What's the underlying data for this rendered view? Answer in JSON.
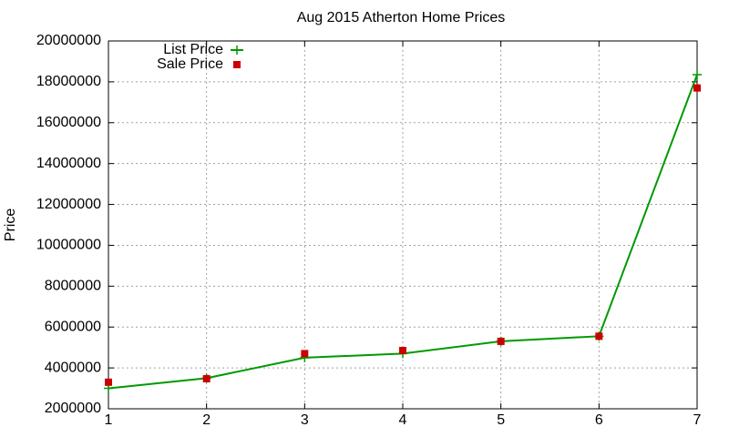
{
  "chart_data": {
    "type": "line",
    "title": "Aug 2015 Atherton Home Prices",
    "y_label": "Price",
    "x": [
      1,
      2,
      3,
      4,
      5,
      6,
      7
    ],
    "series": [
      {
        "name": "List Price",
        "color": "#009900",
        "line": true,
        "marker": "plus",
        "values": [
          3000000,
          3500000,
          4500000,
          4700000,
          5300000,
          5550000,
          18350000
        ]
      },
      {
        "name": "Sale Price",
        "color": "#cc0000",
        "line": false,
        "marker": "square",
        "values": [
          3300000,
          3470000,
          4700000,
          4850000,
          5300000,
          5550000,
          17700000
        ]
      }
    ],
    "xlim": [
      1,
      7
    ],
    "xticks": [
      1,
      2,
      3,
      4,
      5,
      6,
      7
    ],
    "ylim": [
      2000000,
      20000000
    ],
    "yticks": [
      2000000,
      4000000,
      6000000,
      8000000,
      10000000,
      12000000,
      14000000,
      16000000,
      18000000,
      20000000
    ],
    "grid": true,
    "legend": "top-left"
  }
}
